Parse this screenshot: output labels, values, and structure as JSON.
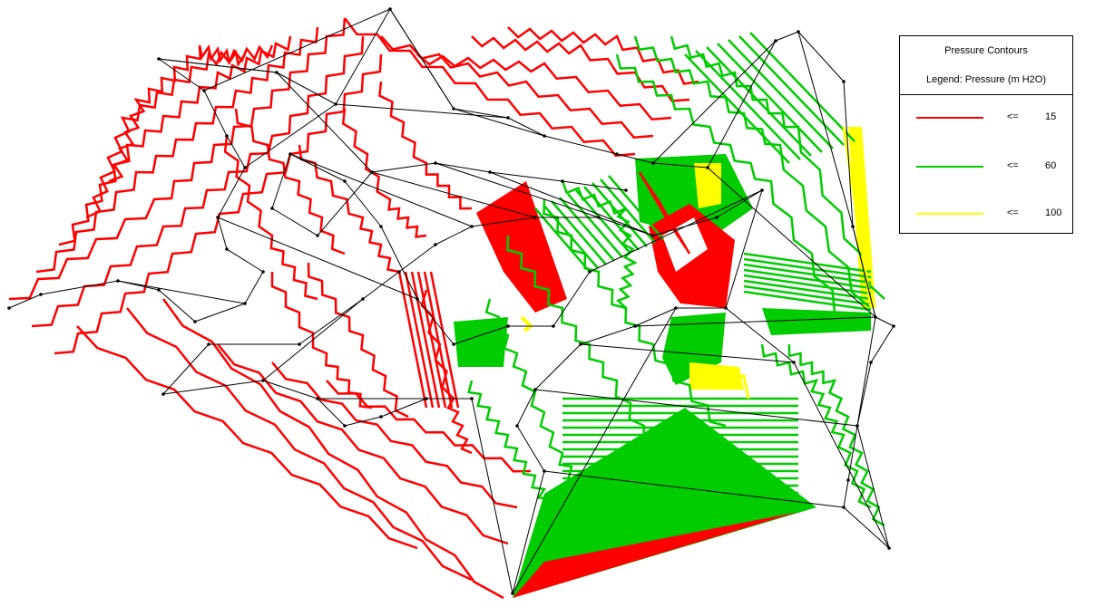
{
  "legend": {
    "title": "Pressure Contours",
    "subtitle": "Legend: Pressure (m H2O)",
    "entries": [
      {
        "operator": "<=",
        "value": "15",
        "color": "#ff0000"
      },
      {
        "operator": "<=",
        "value": "60",
        "color": "#00cc00"
      },
      {
        "operator": "<=",
        "value": "100",
        "color": "#ffff00"
      }
    ]
  },
  "colors": {
    "low": "#ff0000",
    "mid": "#00cc00",
    "high": "#ffff00",
    "network": "#000000",
    "background": "#ffffff"
  }
}
